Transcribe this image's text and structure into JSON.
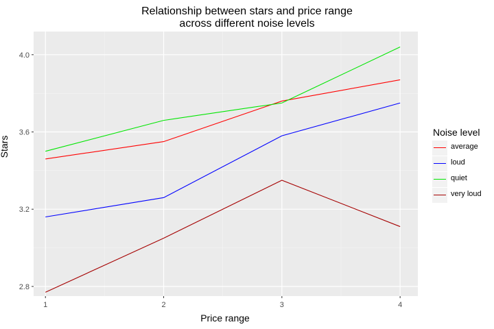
{
  "title_lines": [
    "Relationship between stars and price range",
    "across different noise levels"
  ],
  "chart_data": {
    "type": "line",
    "x": [
      1,
      2,
      3,
      4
    ],
    "xlabel": "Price range",
    "ylabel": "Stars",
    "xlim": [
      0.9,
      4.15
    ],
    "ylim": [
      2.75,
      4.12
    ],
    "xticks": [
      "1",
      "2",
      "3",
      "4"
    ],
    "yticks": [
      "2.8",
      "3.2",
      "3.6",
      "4.0"
    ],
    "ytick_values": [
      2.8,
      3.2,
      3.6,
      4.0
    ],
    "grid": true,
    "legend_title": "Noise level",
    "legend_position": "right",
    "series": [
      {
        "name": "average",
        "color": "#ff0000",
        "values": [
          3.46,
          3.55,
          3.76,
          3.87
        ]
      },
      {
        "name": "loud",
        "color": "#0000ff",
        "values": [
          3.16,
          3.26,
          3.58,
          3.75
        ]
      },
      {
        "name": "quiet",
        "color": "#00e600",
        "values": [
          3.5,
          3.66,
          3.75,
          4.04
        ]
      },
      {
        "name": "very loud",
        "color": "#a50000",
        "values": [
          2.77,
          3.05,
          3.35,
          3.11
        ]
      }
    ]
  }
}
